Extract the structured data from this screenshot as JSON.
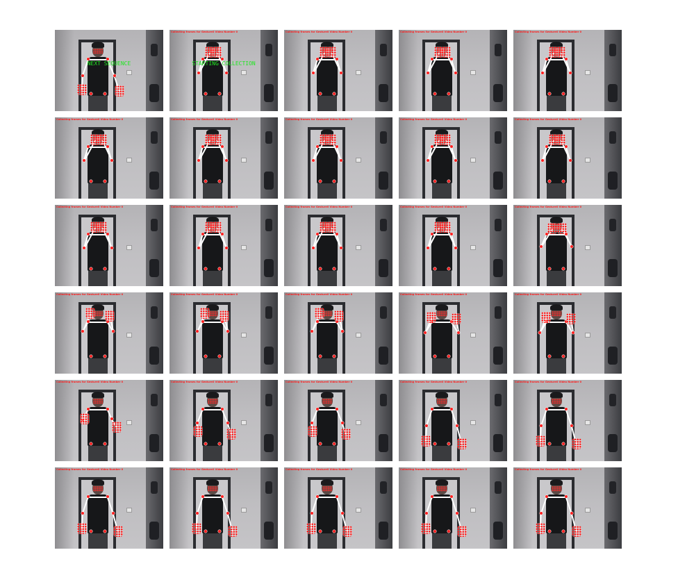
{
  "grid": {
    "rows": 6,
    "cols": 5
  },
  "frames": [
    {
      "pose": "hands-low-spread",
      "overlay": "NEXT SEQUENCE",
      "caption": ""
    },
    {
      "pose": "hands-face",
      "overlay": "STARTING COLLECTION",
      "caption": "Collecting frames for Gesture0 Video Number 0"
    },
    {
      "pose": "hands-face",
      "overlay": "",
      "caption": "Collecting frames for Gesture0 Video Number 0"
    },
    {
      "pose": "hands-face",
      "overlay": "",
      "caption": "Collecting frames for Gesture0 Video Number 0"
    },
    {
      "pose": "hands-face",
      "overlay": "",
      "caption": "Collecting frames for Gesture0 Video Number 0"
    },
    {
      "pose": "hands-face",
      "overlay": "",
      "caption": "Collecting frames for Gesture0 Video Number 0"
    },
    {
      "pose": "hands-face",
      "overlay": "",
      "caption": "Collecting frames for Gesture0 Video Number 0"
    },
    {
      "pose": "hands-face",
      "overlay": "",
      "caption": "Collecting frames for Gesture0 Video Number 0"
    },
    {
      "pose": "hands-face",
      "overlay": "",
      "caption": "Collecting frames for Gesture0 Video Number 0"
    },
    {
      "pose": "hands-face",
      "overlay": "",
      "caption": "Collecting frames for Gesture0 Video Number 0"
    },
    {
      "pose": "hands-face",
      "overlay": "",
      "caption": "Collecting frames for Gesture0 Video Number 0"
    },
    {
      "pose": "hands-face",
      "overlay": "",
      "caption": "Collecting frames for Gesture0 Video Number 0"
    },
    {
      "pose": "hands-face",
      "overlay": "",
      "caption": "Collecting frames for Gesture0 Video Number 0"
    },
    {
      "pose": "hands-face",
      "overlay": "",
      "caption": "Collecting frames for Gesture0 Video Number 0"
    },
    {
      "pose": "hands-face-wide",
      "overlay": "",
      "caption": "Collecting frames for Gesture0 Video Number 0"
    },
    {
      "pose": "hands-up-open",
      "overlay": "",
      "caption": "Collecting frames for Gesture0 Video Number 0"
    },
    {
      "pose": "hands-up-open",
      "overlay": "",
      "caption": "Collecting frames for Gesture0 Video Number 0"
    },
    {
      "pose": "hands-up-open",
      "overlay": "",
      "caption": "Collecting frames for Gesture0 Video Number 0"
    },
    {
      "pose": "hands-up-wide",
      "overlay": "",
      "caption": "Collecting frames for Gesture0 Video Number 0"
    },
    {
      "pose": "hands-up-wide",
      "overlay": "",
      "caption": "Collecting frames for Gesture0 Video Number 0"
    },
    {
      "pose": "hands-mid",
      "overlay": "",
      "caption": "Collecting frames for Gesture0 Video Number 0"
    },
    {
      "pose": "hands-mid-low",
      "overlay": "",
      "caption": "Collecting frames for Gesture0 Video Number 0"
    },
    {
      "pose": "hands-mid-low",
      "overlay": "",
      "caption": "Collecting frames for Gesture0 Video Number 0"
    },
    {
      "pose": "hands-low",
      "overlay": "",
      "caption": "Collecting frames for Gesture0 Video Number 0"
    },
    {
      "pose": "hands-low",
      "overlay": "",
      "caption": "Collecting frames for Gesture0 Video Number 0"
    },
    {
      "pose": "hands-low",
      "overlay": "",
      "caption": "Collecting frames for Gesture0 Video Number 0"
    },
    {
      "pose": "hands-low",
      "overlay": "",
      "caption": "Collecting frames for Gesture0 Video Number 0"
    },
    {
      "pose": "hands-low",
      "overlay": "",
      "caption": "Collecting frames for Gesture0 Video Number 0"
    },
    {
      "pose": "hands-low",
      "overlay": "",
      "caption": "Collecting frames for Gesture0 Video Number 0"
    },
    {
      "pose": "hands-low",
      "overlay": "",
      "caption": "Collecting frames for Gesture0 Video Number 0"
    }
  ],
  "colors": {
    "caption": "#ff1a1a",
    "overlay": "#22e622",
    "keypoint": "#ff2020",
    "skeleton": "#ffffff"
  }
}
